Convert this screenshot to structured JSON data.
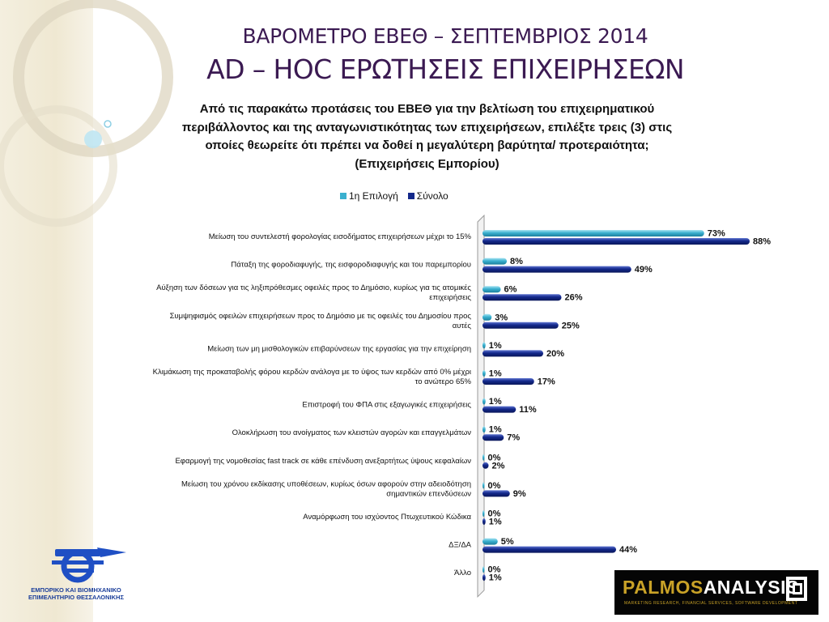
{
  "header": {
    "title_line1": "ΒΑΡΟΜΕΤΡΟ ΕΒΕΘ – ΣΕΠΤΕΜΒΡΙΟΣ 2014",
    "title_line2": "AD – HOC ΕΡΩΤΗΣΕΙΣ ΕΠΙΧΕΙΡΗΣΕΩΝ"
  },
  "question": {
    "line1": "Από τις παρακάτω προτάσεις του ΕΒΕΘ για την βελτίωση του επιχειρηματικού",
    "line2": "περιβάλλοντος και της ανταγωνιστικότητας των επιχειρήσεων, επιλέξτε τρεις (3) στις",
    "line3": "οποίες θεωρείτε ότι πρέπει να δοθεί η μεγαλύτερη βαρύτητα/ προτεραιότητα;",
    "line4": "(Επιχειρήσεις Εμπορίου)"
  },
  "colors": {
    "first_choice": "#3ab0cf",
    "total": "#13288a",
    "title": "#3b1a52"
  },
  "chart_data": {
    "type": "bar",
    "orientation": "horizontal",
    "unit": "%",
    "xlim": [
      0,
      100
    ],
    "legend": "top",
    "categories": [
      [
        "Μείωση του συντελεστή φορολογίας εισοδήματος επιχειρήσεων μέχρι το 15%"
      ],
      [
        "Πάταξη της φοροδιαφυγής, της εισφοροδιαφυγής και του παρεμπορίου"
      ],
      [
        "Αύξηση των δόσεων για τις ληξιπρόθεσμες οφειλές προς το Δημόσιο, κυρίως για τις ατομικές",
        "επιχειρήσεις"
      ],
      [
        "Συμψηφισμός οφειλών επιχειρήσεων προς το Δημόσιο με τις οφειλές του Δημοσίου προς",
        "αυτές"
      ],
      [
        "Μείωση των μη μισθολογικών επιβαρύνσεων της εργασίας για την επιχείρηση"
      ],
      [
        "Κλιμάκωση της προκαταβολής φόρου κερδών ανάλογα με το ύψος των κερδών από 0% μέχρι",
        "το ανώτερο 65%"
      ],
      [
        "Επιστροφή του ΦΠΑ στις εξαγωγικές επιχειρήσεις"
      ],
      [
        "Ολοκλήρωση του ανοίγματος των κλειστών αγορών και επαγγελμάτων"
      ],
      [
        "Εφαρμογή της νομοθεσίας fast track σε κάθε επένδυση ανεξαρτήτως ύψους κεφαλαίων"
      ],
      [
        "Μείωση του χρόνου εκδίκασης υποθέσεων, κυρίως όσων αφορούν στην αδειοδότηση",
        "σημαντικών επενδύσεων"
      ],
      [
        "Αναμόρφωση του ισχύοντος Πτωχευτικού Κώδικα"
      ],
      [
        "ΔΞ/ΔΑ"
      ],
      [
        "Άλλο"
      ]
    ],
    "series": [
      {
        "name": "1η Επιλογή",
        "values": [
          73,
          8,
          6,
          3,
          1,
          1,
          1,
          1,
          0,
          0,
          0,
          5,
          0
        ]
      },
      {
        "name": "Σύνολο",
        "values": [
          88,
          49,
          26,
          25,
          20,
          17,
          11,
          7,
          2,
          9,
          1,
          44,
          1
        ]
      }
    ]
  },
  "logos": {
    "ebeth_line1": "ΕΜΠΟΡΙΚΟ ΚΑΙ ΒΙΟΜΗΧΑΝΙΚΟ",
    "ebeth_line2": "ΕΠΙΜΕΛΗΤΗΡΙΟ ΘΕΣΣΑΛΟΝΙΚΗΣ",
    "palmos_part1": "PALMOS",
    "palmos_part2": "ANALYSIS",
    "palmos_tagline": "MARKETING RESEARCH, FINANCIAL SERVICES, SOFTWARE DEVELOPMENT"
  }
}
